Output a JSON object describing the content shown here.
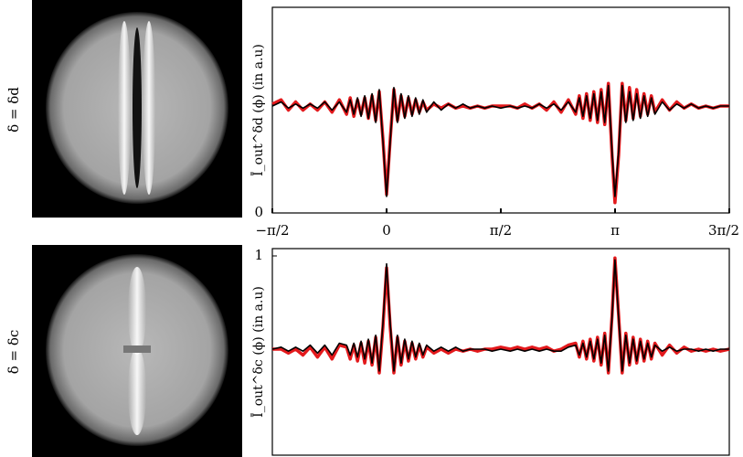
{
  "chart_data": [
    {
      "type": "line",
      "panel_label": "δ = δd",
      "ylabel": "Ī_out^δd (ϕ) (in a.u)",
      "xlim": [
        -1.5708,
        4.7124
      ],
      "xticks": [
        {
          "value": -1.5708,
          "label": "−π/2"
        },
        0,
        {
          "value": 1.5708,
          "label": "π/2"
        },
        {
          "value": 3.1416,
          "label": "π"
        },
        {
          "value": 4.7124,
          "label": "3π/2"
        }
      ],
      "ylim": [
        0,
        1
      ],
      "yticks": [
        0
      ],
      "x": [
        -1.57,
        -1.45,
        -1.35,
        -1.25,
        -1.15,
        -1.05,
        -0.95,
        -0.85,
        -0.75,
        -0.65,
        -0.55,
        -0.5,
        -0.45,
        -0.4,
        -0.35,
        -0.3,
        -0.25,
        -0.2,
        -0.15,
        -0.1,
        -0.05,
        0,
        0.05,
        0.1,
        0.15,
        0.2,
        0.25,
        0.3,
        0.35,
        0.4,
        0.45,
        0.5,
        0.55,
        0.65,
        0.75,
        0.85,
        0.95,
        1.05,
        1.15,
        1.25,
        1.35,
        1.45,
        1.57,
        1.7,
        1.8,
        1.9,
        2.0,
        2.1,
        2.2,
        2.3,
        2.4,
        2.5,
        2.6,
        2.65,
        2.7,
        2.75,
        2.8,
        2.85,
        2.9,
        2.95,
        3.0,
        3.05,
        3.1,
        3.14,
        3.19,
        3.24,
        3.29,
        3.34,
        3.39,
        3.44,
        3.49,
        3.54,
        3.59,
        3.64,
        3.69,
        3.79,
        3.89,
        3.99,
        4.09,
        4.19,
        4.29,
        4.39,
        4.49,
        4.59,
        4.71
      ],
      "series": [
        {
          "color": "#e3191c",
          "width": 3.5,
          "values": [
            0.53,
            0.55,
            0.5,
            0.54,
            0.5,
            0.53,
            0.5,
            0.54,
            0.49,
            0.55,
            0.48,
            0.56,
            0.47,
            0.55,
            0.48,
            0.56,
            0.46,
            0.57,
            0.45,
            0.59,
            0.36,
            0.09,
            0.36,
            0.6,
            0.45,
            0.57,
            0.47,
            0.56,
            0.48,
            0.55,
            0.49,
            0.54,
            0.5,
            0.53,
            0.51,
            0.53,
            0.51,
            0.52,
            0.51,
            0.52,
            0.51,
            0.52,
            0.52,
            0.52,
            0.51,
            0.53,
            0.51,
            0.53,
            0.5,
            0.54,
            0.49,
            0.55,
            0.48,
            0.57,
            0.46,
            0.58,
            0.45,
            0.59,
            0.44,
            0.6,
            0.43,
            0.63,
            0.28,
            0.05,
            0.28,
            0.63,
            0.45,
            0.61,
            0.46,
            0.6,
            0.47,
            0.58,
            0.48,
            0.57,
            0.49,
            0.55,
            0.5,
            0.54,
            0.51,
            0.53,
            0.51,
            0.52,
            0.51,
            0.52,
            0.52
          ]
        },
        {
          "color": "#000000",
          "width": 1.6,
          "values": [
            0.52,
            0.54,
            0.51,
            0.53,
            0.51,
            0.53,
            0.51,
            0.54,
            0.5,
            0.54,
            0.49,
            0.55,
            0.48,
            0.56,
            0.47,
            0.57,
            0.46,
            0.58,
            0.44,
            0.6,
            0.35,
            0.08,
            0.35,
            0.61,
            0.44,
            0.58,
            0.46,
            0.57,
            0.47,
            0.56,
            0.48,
            0.55,
            0.49,
            0.54,
            0.5,
            0.53,
            0.51,
            0.53,
            0.51,
            0.52,
            0.51,
            0.52,
            0.51,
            0.52,
            0.51,
            0.52,
            0.51,
            0.53,
            0.51,
            0.53,
            0.5,
            0.54,
            0.49,
            0.56,
            0.47,
            0.57,
            0.46,
            0.58,
            0.45,
            0.59,
            0.44,
            0.62,
            0.3,
            0.08,
            0.3,
            0.62,
            0.44,
            0.59,
            0.45,
            0.58,
            0.46,
            0.57,
            0.47,
            0.56,
            0.48,
            0.54,
            0.5,
            0.53,
            0.51,
            0.53,
            0.51,
            0.52,
            0.51,
            0.52,
            0.52
          ]
        }
      ]
    },
    {
      "type": "line",
      "panel_label": "δ = δc",
      "ylabel": "Ī_out^δc (ϕ) (in a.u)",
      "xlim": [
        -1.5708,
        4.7124
      ],
      "ylim": [
        0,
        1
      ],
      "yticks": [
        1
      ],
      "x": [
        -1.57,
        -1.45,
        -1.35,
        -1.25,
        -1.15,
        -1.05,
        -0.95,
        -0.85,
        -0.75,
        -0.65,
        -0.55,
        -0.5,
        -0.45,
        -0.4,
        -0.35,
        -0.3,
        -0.25,
        -0.2,
        -0.15,
        -0.1,
        -0.05,
        0,
        0.05,
        0.1,
        0.15,
        0.2,
        0.25,
        0.3,
        0.35,
        0.4,
        0.45,
        0.5,
        0.55,
        0.65,
        0.75,
        0.85,
        0.95,
        1.05,
        1.15,
        1.25,
        1.35,
        1.45,
        1.57,
        1.7,
        1.8,
        1.9,
        2.0,
        2.1,
        2.2,
        2.3,
        2.4,
        2.5,
        2.6,
        2.65,
        2.7,
        2.75,
        2.8,
        2.85,
        2.9,
        2.95,
        3.0,
        3.05,
        3.1,
        3.14,
        3.19,
        3.24,
        3.29,
        3.34,
        3.39,
        3.44,
        3.49,
        3.54,
        3.59,
        3.64,
        3.69,
        3.79,
        3.89,
        3.99,
        4.09,
        4.19,
        4.29,
        4.39,
        4.49,
        4.59,
        4.71
      ],
      "series": [
        {
          "color": "#e3191c",
          "width": 3.5,
          "values": [
            0.53,
            0.53,
            0.51,
            0.53,
            0.5,
            0.54,
            0.49,
            0.54,
            0.48,
            0.55,
            0.54,
            0.48,
            0.55,
            0.47,
            0.56,
            0.46,
            0.57,
            0.45,
            0.59,
            0.41,
            0.64,
            0.94,
            0.64,
            0.41,
            0.59,
            0.45,
            0.57,
            0.47,
            0.56,
            0.48,
            0.55,
            0.49,
            0.54,
            0.51,
            0.53,
            0.51,
            0.53,
            0.52,
            0.53,
            0.52,
            0.53,
            0.53,
            0.54,
            0.53,
            0.54,
            0.53,
            0.54,
            0.53,
            0.54,
            0.52,
            0.53,
            0.55,
            0.56,
            0.49,
            0.57,
            0.48,
            0.58,
            0.47,
            0.59,
            0.45,
            0.61,
            0.41,
            0.7,
            0.99,
            0.7,
            0.41,
            0.61,
            0.45,
            0.59,
            0.46,
            0.58,
            0.47,
            0.57,
            0.48,
            0.56,
            0.5,
            0.55,
            0.51,
            0.54,
            0.52,
            0.53,
            0.52,
            0.53,
            0.52,
            0.53
          ]
        },
        {
          "color": "#000000",
          "width": 1.6,
          "values": [
            0.53,
            0.54,
            0.52,
            0.54,
            0.52,
            0.55,
            0.51,
            0.55,
            0.5,
            0.56,
            0.55,
            0.5,
            0.56,
            0.49,
            0.57,
            0.48,
            0.58,
            0.46,
            0.6,
            0.42,
            0.66,
            0.96,
            0.66,
            0.42,
            0.6,
            0.46,
            0.58,
            0.48,
            0.57,
            0.49,
            0.56,
            0.5,
            0.55,
            0.52,
            0.54,
            0.52,
            0.54,
            0.52,
            0.53,
            0.53,
            0.53,
            0.52,
            0.53,
            0.52,
            0.53,
            0.52,
            0.53,
            0.52,
            0.53,
            0.52,
            0.52,
            0.54,
            0.55,
            0.5,
            0.56,
            0.49,
            0.57,
            0.48,
            0.58,
            0.46,
            0.6,
            0.42,
            0.69,
            0.98,
            0.69,
            0.42,
            0.6,
            0.46,
            0.58,
            0.47,
            0.57,
            0.48,
            0.56,
            0.49,
            0.55,
            0.52,
            0.54,
            0.52,
            0.53,
            0.53,
            0.52,
            0.53,
            0.52,
            0.53,
            0.53
          ]
        }
      ]
    }
  ]
}
